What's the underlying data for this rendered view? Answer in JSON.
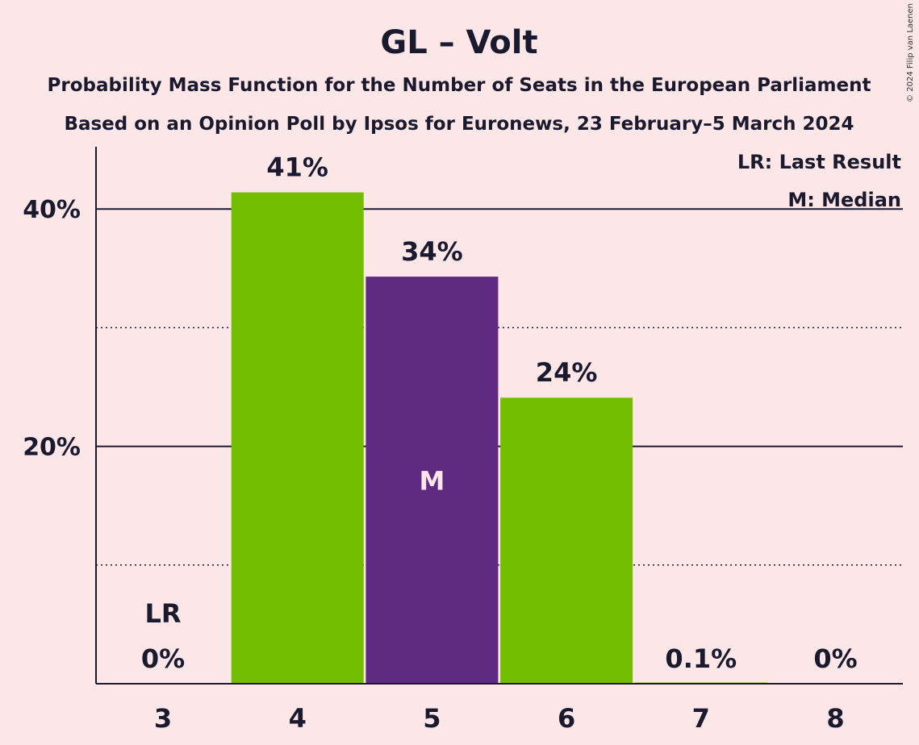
{
  "chart_data": {
    "type": "bar",
    "title": "GL – Volt",
    "subtitle_lines": [
      "Probability Mass Function for the Number of Seats in the European Parliament",
      "Based on an Opinion Poll by Ipsos for Euronews, 23 February–5 March 2024"
    ],
    "categories": [
      "3",
      "4",
      "5",
      "6",
      "7",
      "8"
    ],
    "values": [
      0,
      41.4,
      34.3,
      24.1,
      0.1,
      0
    ],
    "value_labels": [
      "0%",
      "41%",
      "34%",
      "24%",
      "0.1%",
      "0%"
    ],
    "bar_colors": [
      "#73BD00",
      "#73BD00",
      "#5F2A82",
      "#73BD00",
      "#73BD00",
      "#73BD00"
    ],
    "median_index": 2,
    "median_marker": "M",
    "last_result_index": 0,
    "last_result_marker": "LR",
    "y_ticks": [
      {
        "value": 20,
        "label": "20%"
      },
      {
        "value": 40,
        "label": "40%"
      }
    ],
    "minor_gridlines": [
      10,
      30
    ],
    "ylim": [
      0,
      45
    ],
    "legend": [
      "LR: Last Result",
      "M: Median"
    ],
    "legend_placement": "top-right",
    "copyright": "© 2024 Filip van Laenen"
  }
}
